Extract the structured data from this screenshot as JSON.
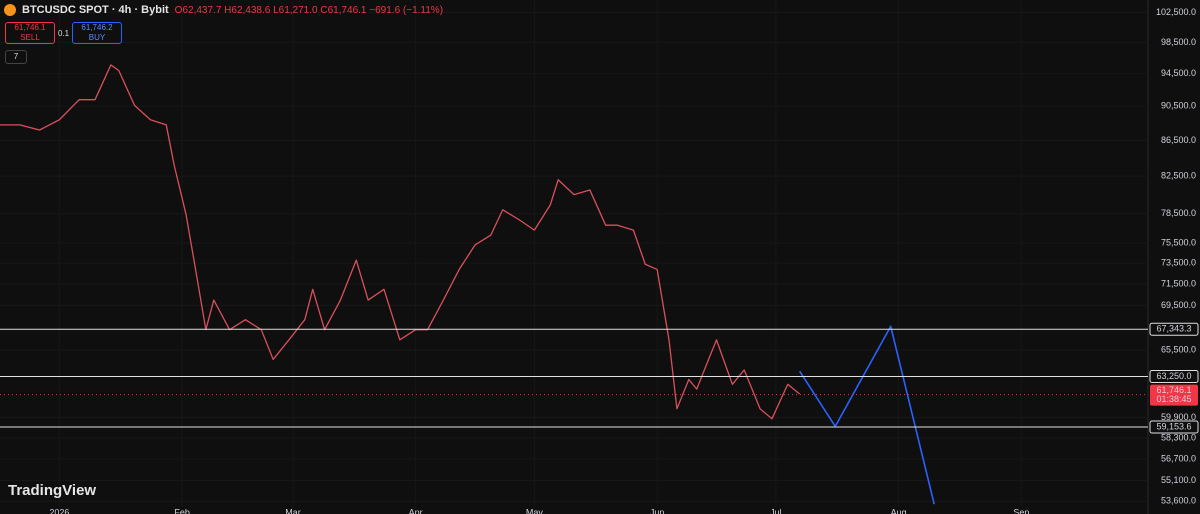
{
  "header": {
    "symbol": "BTCUSDC SPOT · 4h · Bybit",
    "ohlc": "O62,437.7 H62,438.6 L61,271.0 C61,746.1 −691.6 (−1.11%)",
    "sell_price": "61,746.1",
    "sell": "SELL",
    "quantity": "0.1",
    "buy_price": "61,746.2",
    "buy": "BUY",
    "indicators": "7",
    "logo": "TradingView"
  },
  "chart_data": {
    "type": "line",
    "log_scale": true,
    "grid": true,
    "x": [
      -15,
      -10,
      -5,
      0,
      5,
      9,
      13,
      15,
      19,
      23,
      27,
      29,
      32,
      34,
      37,
      39,
      43,
      47,
      51,
      54,
      58,
      62,
      64,
      67,
      71,
      75,
      78,
      82,
      86,
      90,
      93,
      97,
      101,
      105,
      109,
      112,
      116,
      120,
      124,
      126,
      130,
      134,
      138,
      141,
      145,
      148,
      151,
      154,
      156,
      159,
      161,
      164,
      166,
      170,
      173,
      177,
      180,
      184,
      187
    ],
    "values": [
      88300,
      88300,
      87700,
      88900,
      91300,
      91300,
      95600,
      94900,
      90600,
      88900,
      88300,
      83700,
      78400,
      73800,
      67300,
      70000,
      67300,
      68200,
      67300,
      64700,
      66400,
      68200,
      71000,
      67300,
      70000,
      73800,
      70000,
      71000,
      66400,
      67300,
      67300,
      70000,
      72900,
      75300,
      76300,
      78900,
      77900,
      76800,
      79400,
      82100,
      80500,
      81000,
      77300,
      77300,
      76800,
      73400,
      72900,
      66400,
      60600,
      63000,
      62200,
      64700,
      66400,
      62600,
      63800,
      60600,
      59800,
      62600,
      61800
    ],
    "color": "#d8505c",
    "projection": {
      "x": [
        187,
        196,
        210,
        221
      ],
      "values": [
        63700,
        59200,
        67600,
        53400
      ],
      "color": "#2962ff"
    },
    "levels": [
      {
        "value": 67343.3,
        "label": "67,343.3"
      },
      {
        "value": 63250.0,
        "label": "63,250.0"
      },
      {
        "value": 59153.6,
        "label": "59,153.6"
      }
    ],
    "last_price": {
      "value": 61746.1,
      "label": "61,746.1"
    },
    "countdown": "01:38:45",
    "xlim": [
      -15,
      275
    ],
    "xticks": [
      {
        "value": 0,
        "label": "2026"
      },
      {
        "value": 31,
        "label": "Feb"
      },
      {
        "value": 59,
        "label": "Mar"
      },
      {
        "value": 90,
        "label": "Apr"
      },
      {
        "value": 120,
        "label": "May"
      },
      {
        "value": 151,
        "label": "Jun"
      },
      {
        "value": 181,
        "label": "Jul"
      },
      {
        "value": 212,
        "label": "Aug"
      },
      {
        "value": 243,
        "label": "Sep"
      }
    ],
    "ylim": [
      53200,
      104200
    ],
    "yticks": [
      {
        "value": 102500,
        "label": "102,500.0"
      },
      {
        "value": 98500,
        "label": "98,500.0"
      },
      {
        "value": 94500,
        "label": "94,500.0"
      },
      {
        "value": 90500,
        "label": "90,500.0"
      },
      {
        "value": 86500,
        "label": "86,500.0"
      },
      {
        "value": 82500,
        "label": "82,500.0"
      },
      {
        "value": 78500,
        "label": "78,500.0"
      },
      {
        "value": 75500,
        "label": "75,500.0"
      },
      {
        "value": 73500,
        "label": "73,500.0"
      },
      {
        "value": 71500,
        "label": "71,500.0"
      },
      {
        "value": 69500,
        "label": "69,500.0"
      },
      {
        "value": 65500,
        "label": "65,500.0"
      },
      {
        "value": 59900,
        "label": "59,900.0"
      },
      {
        "value": 58300,
        "label": "58,300.0"
      },
      {
        "value": 56700,
        "label": "56,700.0"
      },
      {
        "value": 55100,
        "label": "55,100.0"
      },
      {
        "value": 53600,
        "label": "53,600.0"
      }
    ]
  }
}
